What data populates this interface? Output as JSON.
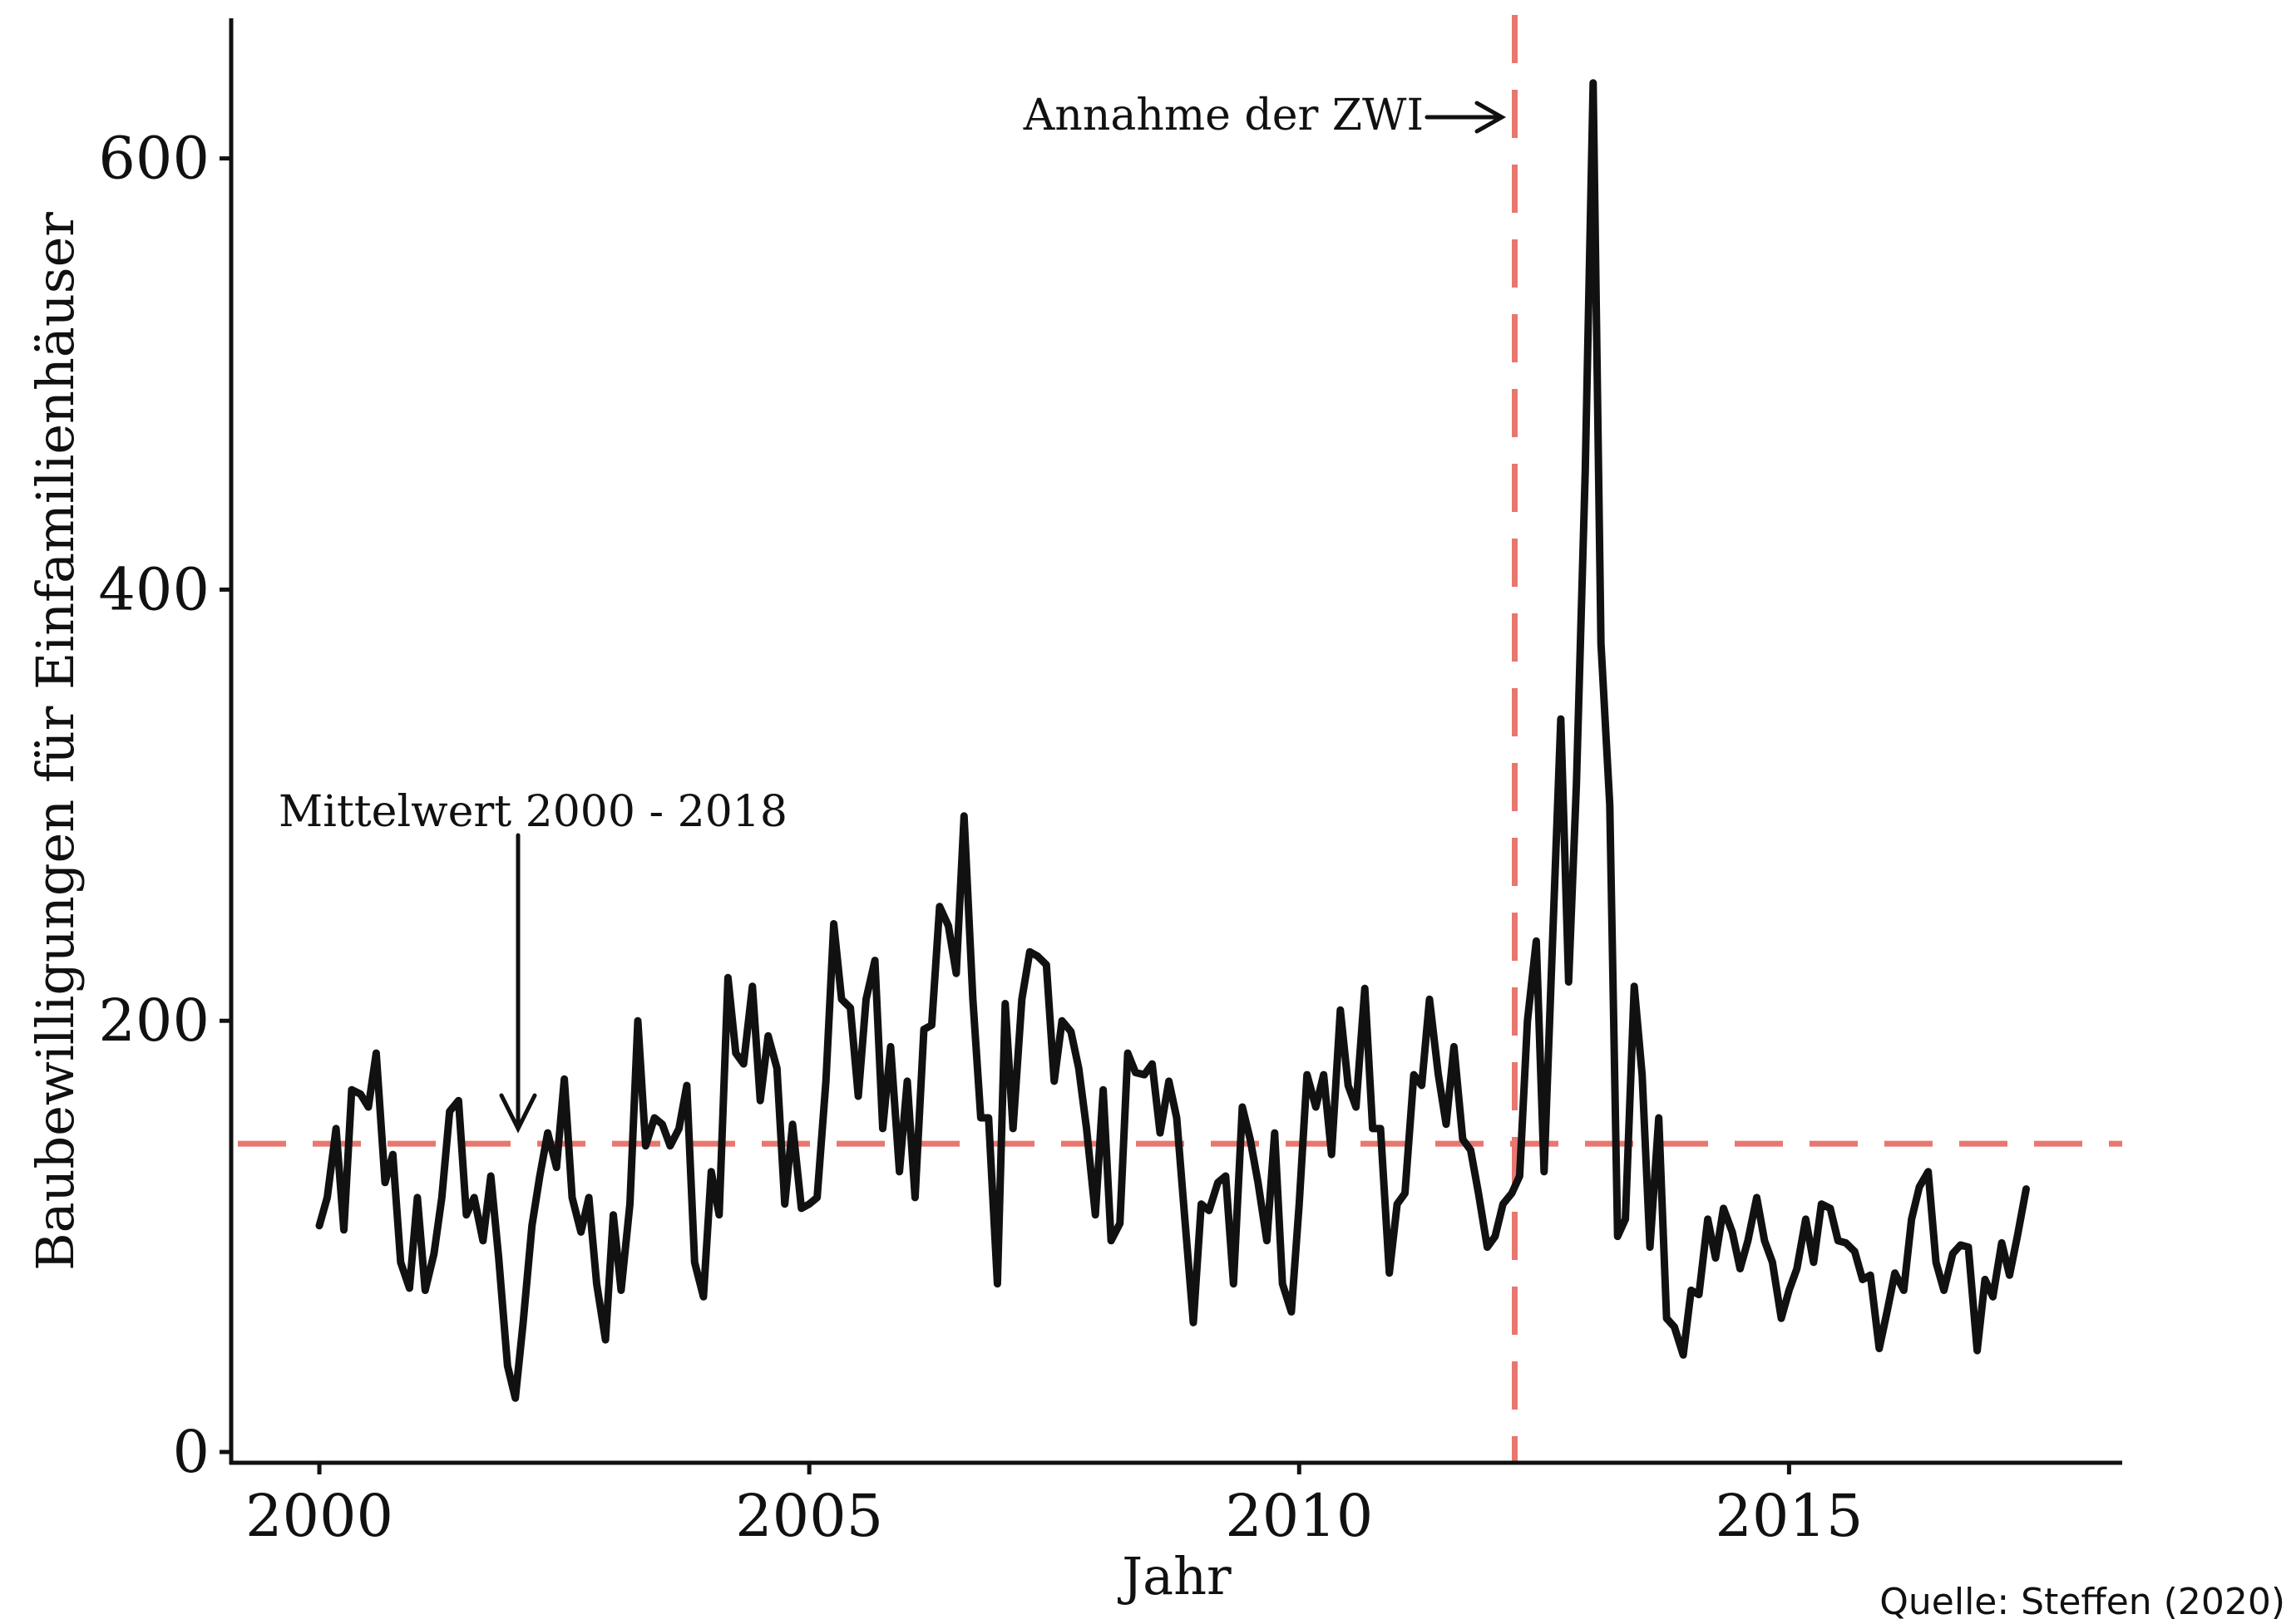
{
  "chart_data": {
    "type": "line",
    "title": "",
    "xlabel": "Jahr",
    "ylabel": "Baubewilligungen für Einfamilienhäuser",
    "xlim": [
      1999.1,
      2018.4
    ],
    "ylim": [
      -5,
      665
    ],
    "x_ticks": [
      2000,
      2005,
      2010,
      2015
    ],
    "y_ticks": [
      0,
      200,
      400,
      600
    ],
    "grid": false,
    "legend": "none",
    "colors": {
      "series": "#111111",
      "reference": "#e8776f"
    },
    "series": [
      {
        "values": [
          [
            2000.0,
            105
          ],
          [
            2000.08,
            118
          ],
          [
            2000.17,
            150
          ],
          [
            2000.25,
            103
          ],
          [
            2000.33,
            168
          ],
          [
            2000.42,
            166
          ],
          [
            2000.5,
            160
          ],
          [
            2000.58,
            185
          ],
          [
            2000.67,
            125
          ],
          [
            2000.75,
            138
          ],
          [
            2000.83,
            88
          ],
          [
            2000.92,
            76
          ],
          [
            2001.0,
            118
          ],
          [
            2001.08,
            75
          ],
          [
            2001.17,
            92
          ],
          [
            2001.25,
            118
          ],
          [
            2001.33,
            158
          ],
          [
            2001.42,
            163
          ],
          [
            2001.5,
            110
          ],
          [
            2001.58,
            118
          ],
          [
            2001.67,
            98
          ],
          [
            2001.75,
            128
          ],
          [
            2001.83,
            90
          ],
          [
            2001.92,
            40
          ],
          [
            2002.0,
            25
          ],
          [
            2002.08,
            60
          ],
          [
            2002.17,
            105
          ],
          [
            2002.25,
            128
          ],
          [
            2002.33,
            148
          ],
          [
            2002.42,
            132
          ],
          [
            2002.5,
            173
          ],
          [
            2002.58,
            118
          ],
          [
            2002.67,
            102
          ],
          [
            2002.75,
            118
          ],
          [
            2002.83,
            78
          ],
          [
            2002.92,
            52
          ],
          [
            2003.0,
            110
          ],
          [
            2003.08,
            75
          ],
          [
            2003.17,
            115
          ],
          [
            2003.25,
            200
          ],
          [
            2003.33,
            142
          ],
          [
            2003.42,
            155
          ],
          [
            2003.5,
            152
          ],
          [
            2003.58,
            142
          ],
          [
            2003.67,
            150
          ],
          [
            2003.75,
            170
          ],
          [
            2003.83,
            88
          ],
          [
            2003.92,
            72
          ],
          [
            2004.0,
            130
          ],
          [
            2004.08,
            110
          ],
          [
            2004.17,
            220
          ],
          [
            2004.25,
            185
          ],
          [
            2004.33,
            180
          ],
          [
            2004.42,
            216
          ],
          [
            2004.5,
            163
          ],
          [
            2004.58,
            193
          ],
          [
            2004.67,
            178
          ],
          [
            2004.75,
            115
          ],
          [
            2004.83,
            152
          ],
          [
            2004.92,
            113
          ],
          [
            2005.0,
            115
          ],
          [
            2005.08,
            118
          ],
          [
            2005.17,
            172
          ],
          [
            2005.25,
            245
          ],
          [
            2005.33,
            210
          ],
          [
            2005.42,
            206
          ],
          [
            2005.5,
            165
          ],
          [
            2005.58,
            210
          ],
          [
            2005.67,
            228
          ],
          [
            2005.75,
            150
          ],
          [
            2005.83,
            188
          ],
          [
            2005.92,
            130
          ],
          [
            2006.0,
            172
          ],
          [
            2006.08,
            118
          ],
          [
            2006.17,
            196
          ],
          [
            2006.25,
            198
          ],
          [
            2006.33,
            253
          ],
          [
            2006.42,
            244
          ],
          [
            2006.5,
            222
          ],
          [
            2006.58,
            295
          ],
          [
            2006.67,
            210
          ],
          [
            2006.75,
            155
          ],
          [
            2006.83,
            155
          ],
          [
            2006.92,
            78
          ],
          [
            2007.0,
            208
          ],
          [
            2007.08,
            150
          ],
          [
            2007.17,
            210
          ],
          [
            2007.25,
            232
          ],
          [
            2007.33,
            230
          ],
          [
            2007.42,
            226
          ],
          [
            2007.5,
            172
          ],
          [
            2007.58,
            200
          ],
          [
            2007.67,
            195
          ],
          [
            2007.75,
            178
          ],
          [
            2007.83,
            150
          ],
          [
            2007.92,
            110
          ],
          [
            2008.0,
            168
          ],
          [
            2008.08,
            98
          ],
          [
            2008.17,
            106
          ],
          [
            2008.25,
            185
          ],
          [
            2008.33,
            176
          ],
          [
            2008.42,
            175
          ],
          [
            2008.5,
            180
          ],
          [
            2008.58,
            148
          ],
          [
            2008.67,
            172
          ],
          [
            2008.75,
            155
          ],
          [
            2008.83,
            110
          ],
          [
            2008.92,
            60
          ],
          [
            2009.0,
            115
          ],
          [
            2009.08,
            112
          ],
          [
            2009.17,
            125
          ],
          [
            2009.25,
            128
          ],
          [
            2009.33,
            78
          ],
          [
            2009.42,
            160
          ],
          [
            2009.5,
            145
          ],
          [
            2009.58,
            125
          ],
          [
            2009.67,
            98
          ],
          [
            2009.75,
            148
          ],
          [
            2009.83,
            78
          ],
          [
            2009.92,
            65
          ],
          [
            2010.0,
            115
          ],
          [
            2010.08,
            175
          ],
          [
            2010.17,
            160
          ],
          [
            2010.25,
            175
          ],
          [
            2010.33,
            138
          ],
          [
            2010.42,
            205
          ],
          [
            2010.5,
            170
          ],
          [
            2010.58,
            160
          ],
          [
            2010.67,
            215
          ],
          [
            2010.75,
            150
          ],
          [
            2010.83,
            150
          ],
          [
            2010.92,
            83
          ],
          [
            2011.0,
            115
          ],
          [
            2011.08,
            120
          ],
          [
            2011.17,
            175
          ],
          [
            2011.25,
            170
          ],
          [
            2011.33,
            210
          ],
          [
            2011.42,
            175
          ],
          [
            2011.5,
            152
          ],
          [
            2011.58,
            188
          ],
          [
            2011.67,
            145
          ],
          [
            2011.75,
            140
          ],
          [
            2011.83,
            120
          ],
          [
            2011.92,
            95
          ],
          [
            2012.0,
            100
          ],
          [
            2012.08,
            115
          ],
          [
            2012.17,
            120
          ],
          [
            2012.25,
            128
          ],
          [
            2012.33,
            200
          ],
          [
            2012.42,
            237
          ],
          [
            2012.5,
            130
          ],
          [
            2012.58,
            230
          ],
          [
            2012.67,
            340
          ],
          [
            2012.75,
            218
          ],
          [
            2012.83,
            310
          ],
          [
            2012.92,
            455
          ],
          [
            2013.0,
            635
          ],
          [
            2013.08,
            375
          ],
          [
            2013.17,
            300
          ],
          [
            2013.25,
            100
          ],
          [
            2013.33,
            108
          ],
          [
            2013.42,
            216
          ],
          [
            2013.5,
            175
          ],
          [
            2013.58,
            95
          ],
          [
            2013.67,
            155
          ],
          [
            2013.75,
            62
          ],
          [
            2013.83,
            58
          ],
          [
            2013.92,
            45
          ],
          [
            2014.0,
            75
          ],
          [
            2014.08,
            73
          ],
          [
            2014.17,
            108
          ],
          [
            2014.25,
            90
          ],
          [
            2014.33,
            113
          ],
          [
            2014.42,
            102
          ],
          [
            2014.5,
            85
          ],
          [
            2014.58,
            98
          ],
          [
            2014.67,
            118
          ],
          [
            2014.75,
            98
          ],
          [
            2014.83,
            88
          ],
          [
            2014.92,
            62
          ],
          [
            2015.0,
            75
          ],
          [
            2015.08,
            85
          ],
          [
            2015.17,
            108
          ],
          [
            2015.25,
            88
          ],
          [
            2015.33,
            115
          ],
          [
            2015.42,
            113
          ],
          [
            2015.5,
            98
          ],
          [
            2015.58,
            97
          ],
          [
            2015.67,
            93
          ],
          [
            2015.75,
            80
          ],
          [
            2015.83,
            82
          ],
          [
            2015.92,
            48
          ],
          [
            2016.0,
            65
          ],
          [
            2016.08,
            83
          ],
          [
            2016.17,
            75
          ],
          [
            2016.25,
            108
          ],
          [
            2016.33,
            123
          ],
          [
            2016.42,
            130
          ],
          [
            2016.5,
            88
          ],
          [
            2016.58,
            75
          ],
          [
            2016.67,
            92
          ],
          [
            2016.75,
            96
          ],
          [
            2016.83,
            95
          ],
          [
            2016.92,
            47
          ],
          [
            2017.0,
            80
          ],
          [
            2017.08,
            72
          ],
          [
            2017.17,
            97
          ],
          [
            2017.25,
            82
          ],
          [
            2017.33,
            100
          ],
          [
            2017.42,
            122
          ]
        ]
      }
    ],
    "reference_lines": [
      {
        "orientation": "horizontal",
        "value": 143,
        "style": "dashed",
        "color": "#e8776f"
      },
      {
        "orientation": "vertical",
        "value": 2012.2,
        "style": "dashed",
        "color": "#e8776f"
      }
    ],
    "annotations": [
      {
        "text": "Annahme der ZWI",
        "points_to": {
          "x": 2012.2,
          "y": 618
        }
      },
      {
        "text": "Mittelwert 2000 - 2018",
        "points_to": {
          "x": 2002.0,
          "y": 148
        }
      }
    ]
  },
  "source_note": "Quelle: Steffen (2020)"
}
